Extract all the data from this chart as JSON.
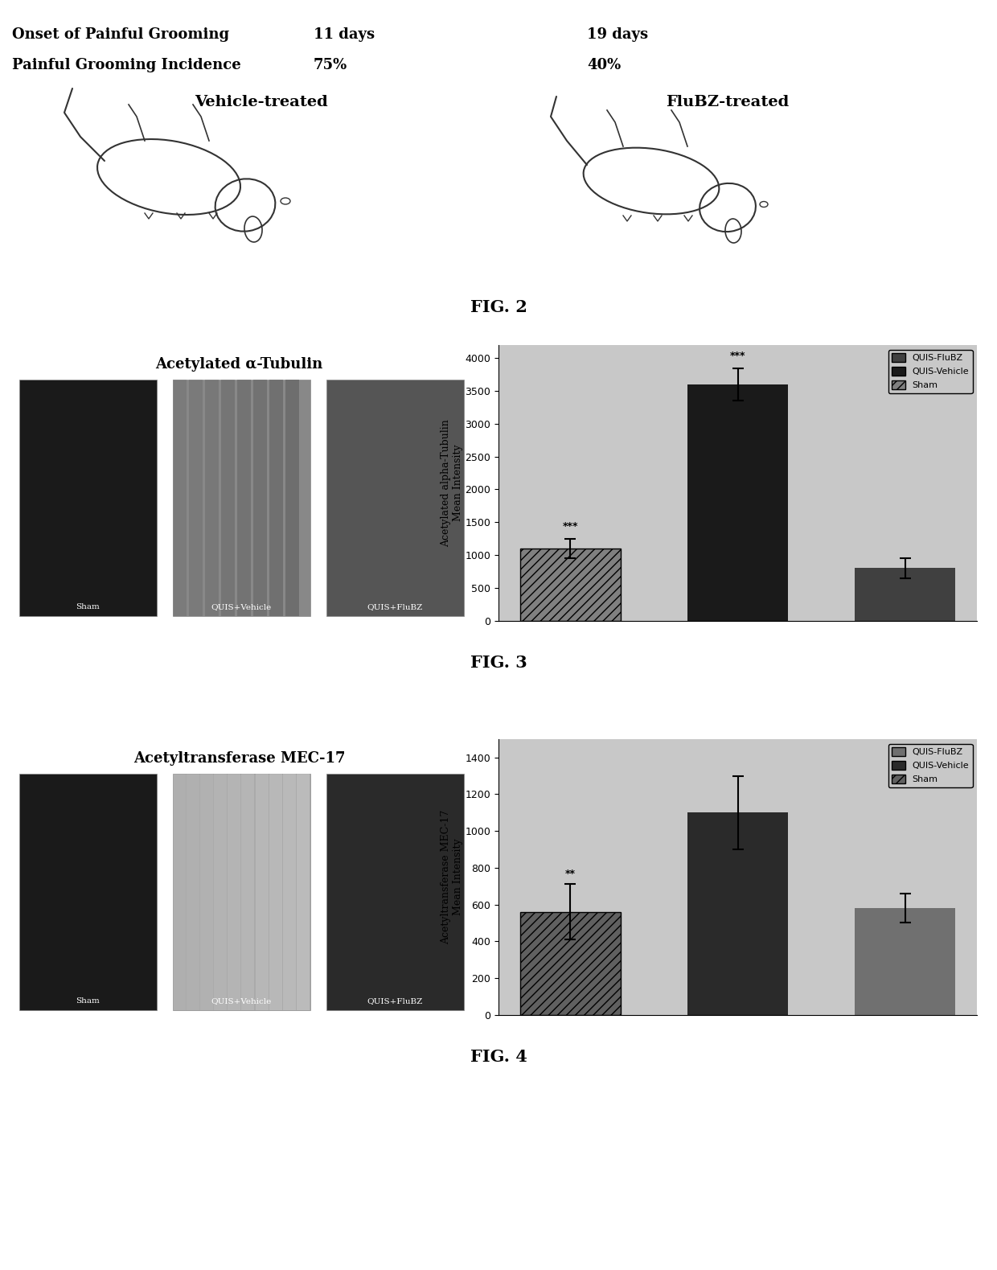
{
  "fig2": {
    "vehicle_label": "Vehicle-treated",
    "flubz_label": "FluBZ-treated",
    "row1_label": "Painful Grooming Incidence",
    "row1_vehicle": "75%",
    "row1_flubz": "40%",
    "row2_label": "Onset of Painful Grooming",
    "row2_vehicle": "11 days",
    "row2_flubz": "19 days"
  },
  "fig3": {
    "title": "Acetylated α-Tubulin",
    "ylabel": "Acetylated alpha-Tubulin\nMean Intensity",
    "categories": [
      "Sham",
      "QUIS-Vehicle",
      "QUIS-FluBZ"
    ],
    "values": [
      1100,
      3600,
      800
    ],
    "errors": [
      150,
      250,
      150
    ],
    "colors": [
      "#808080",
      "#1a1a1a",
      "#404040"
    ],
    "legend_labels": [
      "QUIS-FluBZ",
      "QUIS-Vehicle",
      "Sham"
    ],
    "legend_colors": [
      "#404040",
      "#1a1a1a",
      "#808080"
    ],
    "legend_hatches": [
      "",
      "",
      "///"
    ],
    "ylim": [
      0,
      4200
    ],
    "yticks": [
      0,
      500,
      1000,
      1500,
      2000,
      2500,
      3000,
      3500,
      4000
    ],
    "sig_labels": [
      "***",
      "***",
      ""
    ],
    "background_color": "#c8c8c8",
    "img_colors": [
      "#1a1a1a",
      "#888888",
      "#555555"
    ]
  },
  "fig4": {
    "title": "Acetyltransferase MEC-17",
    "ylabel": "Acetyltransferase MEC-17\nMean Intensity",
    "categories": [
      "Sham",
      "QUIS-Vehicle",
      "QUIS-FluBZ"
    ],
    "values": [
      560,
      1100,
      580
    ],
    "errors": [
      150,
      200,
      80
    ],
    "colors": [
      "#606060",
      "#2a2a2a",
      "#707070"
    ],
    "legend_labels": [
      "QUIS-FluBZ",
      "QUIS-Vehicle",
      "Sham"
    ],
    "legend_colors": [
      "#707070",
      "#2a2a2a",
      "#606060"
    ],
    "legend_hatches": [
      "",
      "",
      "///"
    ],
    "ylim": [
      0,
      1500
    ],
    "yticks": [
      0,
      200,
      400,
      600,
      800,
      1000,
      1200,
      1400
    ],
    "sig_labels": [
      "**",
      "",
      ""
    ],
    "background_color": "#c8c8c8",
    "img_colors": [
      "#1a1a1a",
      "#aaaaaa",
      "#2a2a2a"
    ]
  },
  "caption2": "FIG. 2",
  "caption3": "FIG. 3",
  "caption4": "FIG. 4"
}
